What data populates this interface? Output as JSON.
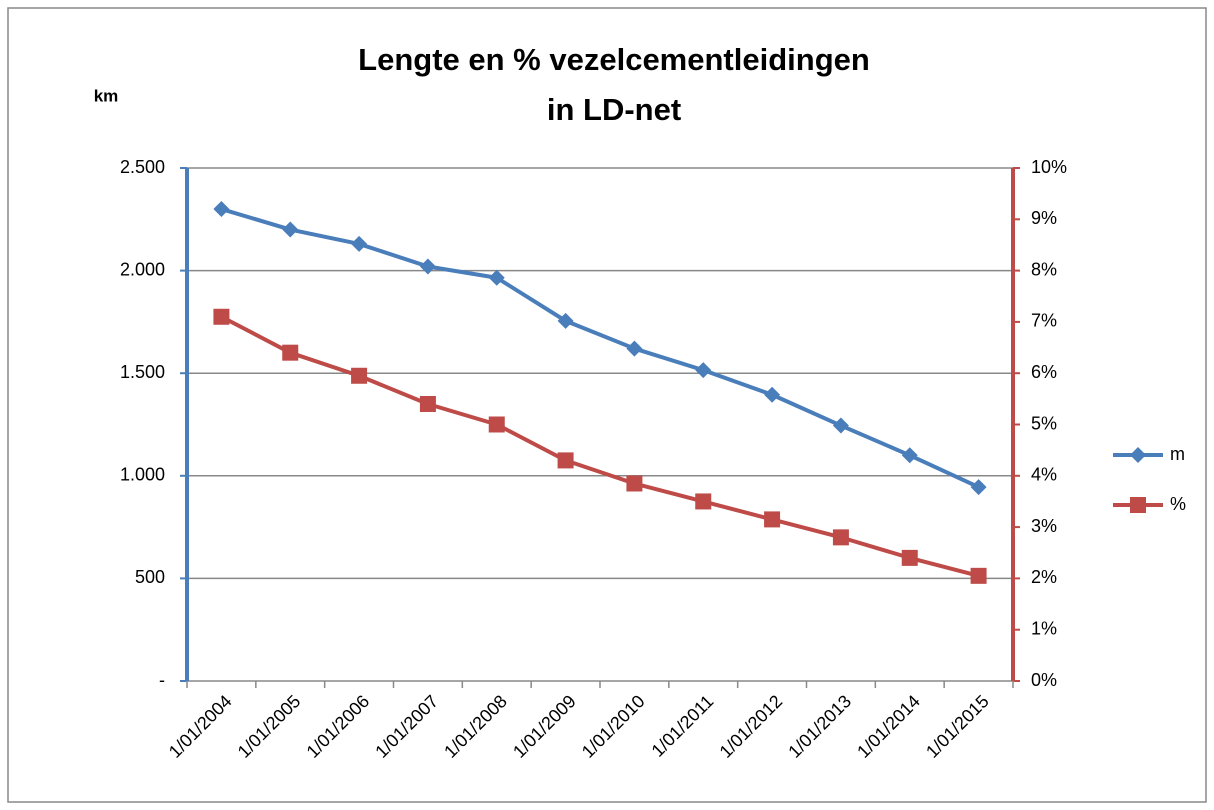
{
  "chart_data": {
    "type": "line",
    "title": [
      "Lengte en % vezelcementleidingen",
      "in LD-net"
    ],
    "y_label": "km",
    "categories": [
      "1/01/2004",
      "1/01/2005",
      "1/01/2006",
      "1/01/2007",
      "1/01/2008",
      "1/01/2009",
      "1/01/2010",
      "1/01/2011",
      "1/01/2012",
      "1/01/2013",
      "1/01/2014",
      "1/01/2015"
    ],
    "series": [
      {
        "name": "m",
        "color": "#4a7ebb",
        "marker": "diamond",
        "values": [
          2300,
          2200,
          2130,
          2020,
          1965,
          1755,
          1620,
          1515,
          1395,
          1245,
          1100,
          945
        ]
      },
      {
        "name": "%",
        "color": "#be4b48",
        "marker": "square",
        "axis": "y2",
        "values": [
          7.1,
          6.4,
          5.95,
          5.4,
          5.0,
          4.3,
          3.85,
          3.5,
          3.15,
          2.8,
          2.4,
          2.05
        ]
      }
    ],
    "ylim": [
      0,
      2500
    ],
    "yticks": [
      {
        "value": 0,
        "label": "-"
      },
      500,
      {
        "value": 1000,
        "label": "1.000"
      },
      {
        "value": 1500,
        "label": "1.500"
      },
      {
        "value": 2000,
        "label": "2.000"
      },
      {
        "value": 2500,
        "label": "2.500"
      }
    ],
    "y2lim": [
      0,
      10
    ],
    "y2ticks": [
      {
        "value": 0,
        "label": "0%"
      },
      {
        "value": 1,
        "label": "1%"
      },
      {
        "value": 2,
        "label": "2%"
      },
      {
        "value": 3,
        "label": "3%"
      },
      {
        "value": 4,
        "label": "4%"
      },
      {
        "value": 5,
        "label": "5%"
      },
      {
        "value": 6,
        "label": "6%"
      },
      {
        "value": 7,
        "label": "7%"
      },
      {
        "value": 8,
        "label": "8%"
      },
      {
        "value": 9,
        "label": "9%"
      },
      {
        "value": 10,
        "label": "10%"
      }
    ],
    "grid": true,
    "legend": "right"
  }
}
